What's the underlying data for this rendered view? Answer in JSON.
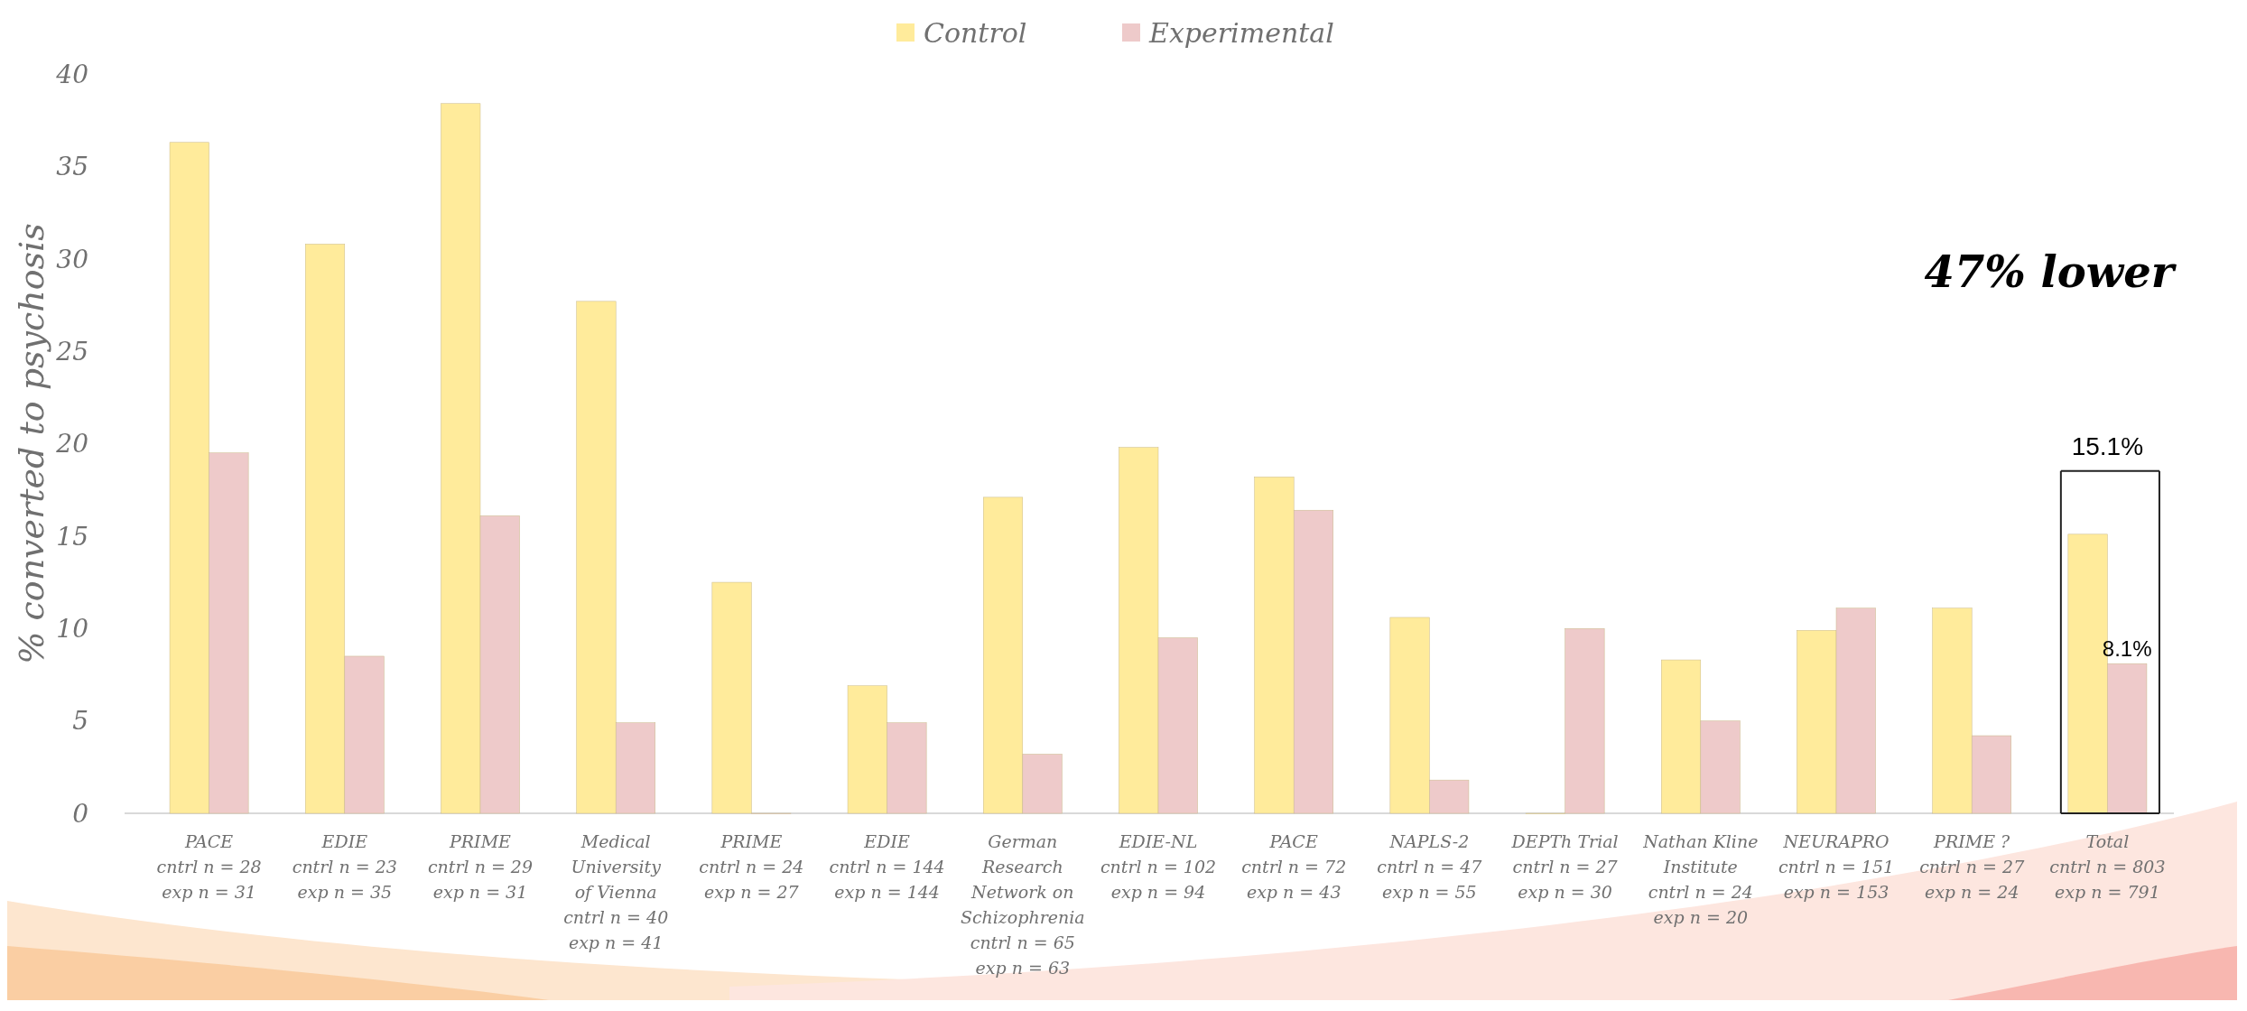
{
  "chart_data": {
    "type": "bar",
    "ylabel": "% converted to psychosis",
    "categories": [
      "PACE\ncntrl n = 28\nexp n = 31",
      "EDIE\ncntrl n = 23\nexp n = 35",
      "PRIME\ncntrl n = 29\nexp n = 31",
      "Medical\nUniversity\nof Vienna\ncntrl n = 40\nexp n = 41",
      "PRIME\ncntrl n = 24\nexp n = 27",
      "EDIE\ncntrl n = 144\nexp n = 144",
      "German\nResearch\nNetwork on\nSchizophrenia\ncntrl n = 65\nexp n = 63",
      "EDIE-NL\ncntrl n = 102\nexp n = 94",
      "PACE\ncntrl n = 72\nexp n = 43",
      "NAPLS-2\ncntrl n = 47\nexp n = 55",
      "DEPTh Trial\ncntrl n = 27\nexp n = 30",
      "Nathan Kline\nInstitute\ncntrl n = 24\nexp n = 20",
      "NEURAPRO\ncntrl n = 151\nexp n = 153",
      "PRIME ?\ncntrl n = 27\nexp n = 24",
      "Total\ncntrl n = 803\nexp n = 791"
    ],
    "series": [
      {
        "name": "Control",
        "color": "#ffeb9b",
        "values": [
          36.3,
          30.8,
          38.4,
          27.7,
          12.5,
          6.9,
          17.1,
          19.8,
          18.2,
          10.6,
          0,
          8.3,
          9.9,
          11.1,
          15.1
        ],
        "value_labels": [
          null,
          null,
          null,
          null,
          null,
          null,
          null,
          null,
          null,
          null,
          null,
          null,
          null,
          null,
          "15.1%"
        ]
      },
      {
        "name": "Experimental",
        "color": "#eecaca",
        "values": [
          19.5,
          8.5,
          16.1,
          4.9,
          0,
          4.9,
          3.2,
          9.5,
          16.4,
          1.8,
          10.0,
          5.0,
          11.1,
          4.2,
          8.1
        ],
        "value_labels": [
          null,
          null,
          null,
          null,
          null,
          null,
          null,
          null,
          null,
          null,
          null,
          null,
          null,
          null,
          "8.1%"
        ]
      }
    ],
    "ylim": [
      0,
      40
    ],
    "yticks": [
      0,
      5,
      10,
      15,
      20,
      25,
      30,
      35,
      40
    ],
    "grid": false,
    "legend": "top",
    "annotations": [
      "47% lower"
    ]
  }
}
